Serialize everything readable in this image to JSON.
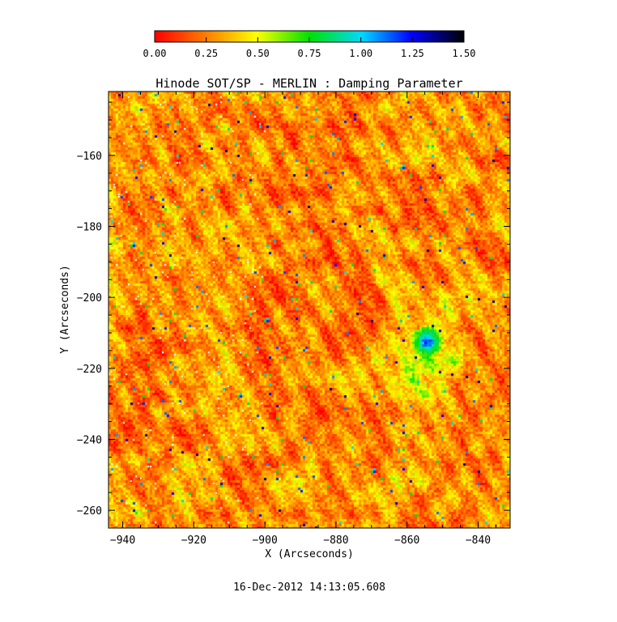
{
  "chart_data": {
    "type": "heatmap",
    "title": "Hinode SOT/SP - MERLIN : Damping Parameter",
    "xlabel": "X (Arcseconds)",
    "ylabel": "Y (Arcseconds)",
    "timestamp": "16-Dec-2012 14:13:05.608",
    "colorbar": {
      "range": [
        0.0,
        1.5
      ],
      "ticks": [
        "0.00",
        "0.25",
        "0.50",
        "0.75",
        "1.00",
        "1.25",
        "1.50"
      ],
      "colormap": "rainbow-reversed",
      "stops": [
        "#ff0000",
        "#ff8000",
        "#ffff00",
        "#00e000",
        "#00d8ff",
        "#0000ff",
        "#000000"
      ]
    },
    "xlim": [
      -944,
      -831
    ],
    "ylim": [
      -265,
      -142
    ],
    "x_ticks": [
      -940,
      -920,
      -900,
      -880,
      -860,
      -840
    ],
    "y_ticks": [
      -260,
      -240,
      -220,
      -200,
      -180,
      -160
    ],
    "grid": false,
    "features": {
      "background_level": 0.1,
      "ring_center": [
        -858,
        -216
      ],
      "ring_radius_arcsec": 10,
      "ring_level": 0.3,
      "core_center": [
        -855,
        -212
      ],
      "core_level": 1.1
    }
  }
}
